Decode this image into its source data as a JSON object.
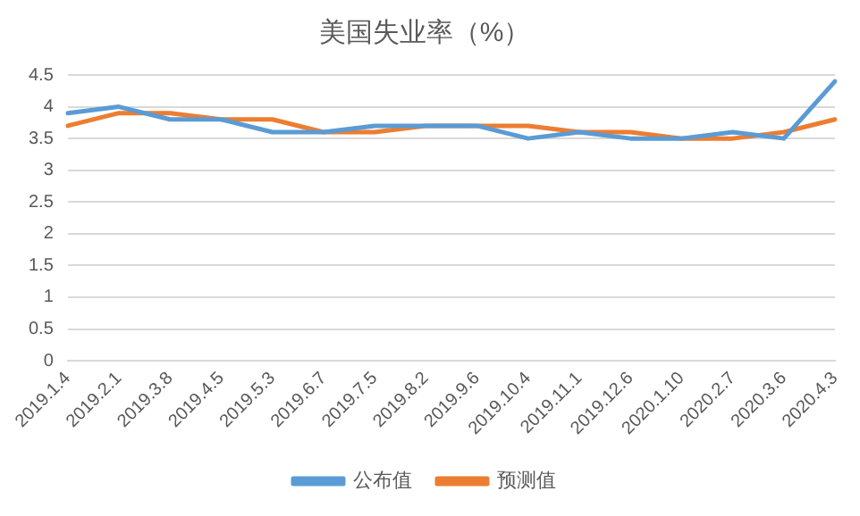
{
  "chart_data": {
    "type": "line",
    "title": "美国失业率（%）",
    "categories": [
      "2019.1.4",
      "2019.2.1",
      "2019.3.8",
      "2019.4.5",
      "2019.5.3",
      "2019.6.7",
      "2019.7.5",
      "2019.8.2",
      "2019.9.6",
      "2019.10.4",
      "2019.11.1",
      "2019.12.6",
      "2020.1.10",
      "2020.2.7",
      "2020.3.6",
      "2020.4.3"
    ],
    "series": [
      {
        "name": "公布值",
        "color": "#5b9bd5",
        "values": [
          3.9,
          4.0,
          3.8,
          3.8,
          3.6,
          3.6,
          3.7,
          3.7,
          3.7,
          3.5,
          3.6,
          3.5,
          3.5,
          3.6,
          3.5,
          4.4
        ]
      },
      {
        "name": "预测值",
        "color": "#ed7d31",
        "values": [
          3.7,
          3.9,
          3.9,
          3.8,
          3.8,
          3.6,
          3.6,
          3.7,
          3.7,
          3.7,
          3.6,
          3.6,
          3.5,
          3.5,
          3.6,
          3.8
        ]
      }
    ],
    "ylim": [
      0,
      4.5
    ],
    "yticks": [
      0,
      0.5,
      1,
      1.5,
      2,
      2.5,
      3,
      3.5,
      4,
      4.5
    ],
    "grid": "y",
    "legend": "bottom",
    "marker": "none",
    "line_style": "solid"
  }
}
